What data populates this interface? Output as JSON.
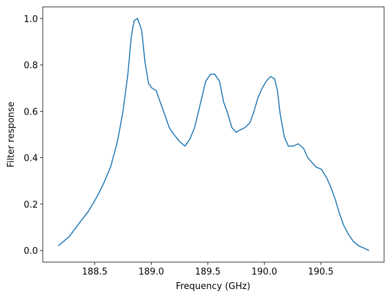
{
  "chart_data": {
    "type": "line",
    "xlabel": "Frequency (GHz)",
    "ylabel": "Filter response",
    "x": [
      188.177,
      188.274,
      188.366,
      188.445,
      188.518,
      188.579,
      188.64,
      188.701,
      188.75,
      188.793,
      188.823,
      188.848,
      188.878,
      188.915,
      188.945,
      188.976,
      189.006,
      189.043,
      189.079,
      189.116,
      189.159,
      189.201,
      189.25,
      189.299,
      189.341,
      189.384,
      189.433,
      189.482,
      189.524,
      189.561,
      189.604,
      189.64,
      189.677,
      189.713,
      189.75,
      189.787,
      189.829,
      189.872,
      189.909,
      189.945,
      189.982,
      190.018,
      190.055,
      190.091,
      190.116,
      190.14,
      190.177,
      190.213,
      190.256,
      190.299,
      190.348,
      190.384,
      190.421,
      190.457,
      190.506,
      190.555,
      190.591,
      190.628,
      190.665,
      190.701,
      190.744,
      190.787,
      190.835,
      190.884,
      190.927
    ],
    "series": [
      {
        "color": "#1f77b4",
        "values": [
          0.02,
          0.06,
          0.12,
          0.17,
          0.23,
          0.29,
          0.36,
          0.47,
          0.6,
          0.76,
          0.92,
          0.99,
          1.0,
          0.95,
          0.81,
          0.72,
          0.7,
          0.69,
          0.64,
          0.59,
          0.53,
          0.5,
          0.47,
          0.45,
          0.48,
          0.53,
          0.63,
          0.73,
          0.76,
          0.76,
          0.73,
          0.64,
          0.59,
          0.53,
          0.51,
          0.52,
          0.53,
          0.55,
          0.6,
          0.66,
          0.7,
          0.73,
          0.75,
          0.74,
          0.69,
          0.59,
          0.49,
          0.45,
          0.45,
          0.46,
          0.44,
          0.4,
          0.38,
          0.36,
          0.35,
          0.31,
          0.27,
          0.22,
          0.16,
          0.11,
          0.07,
          0.04,
          0.02,
          0.01,
          0.0
        ]
      }
    ],
    "xlim": [
      188.04,
      191.06
    ],
    "ylim": [
      -0.05,
      1.05
    ],
    "xticks": [
      188.5,
      {
        "value": 189.0,
        "label": "189.0"
      },
      189.5,
      {
        "value": 190.0,
        "label": "190.0"
      },
      190.5
    ],
    "yticks": [
      {
        "value": 0.0,
        "label": "0.0"
      },
      0.2,
      0.4,
      0.6,
      0.8,
      {
        "value": 1.0,
        "label": "1.0"
      }
    ],
    "grid": false
  }
}
